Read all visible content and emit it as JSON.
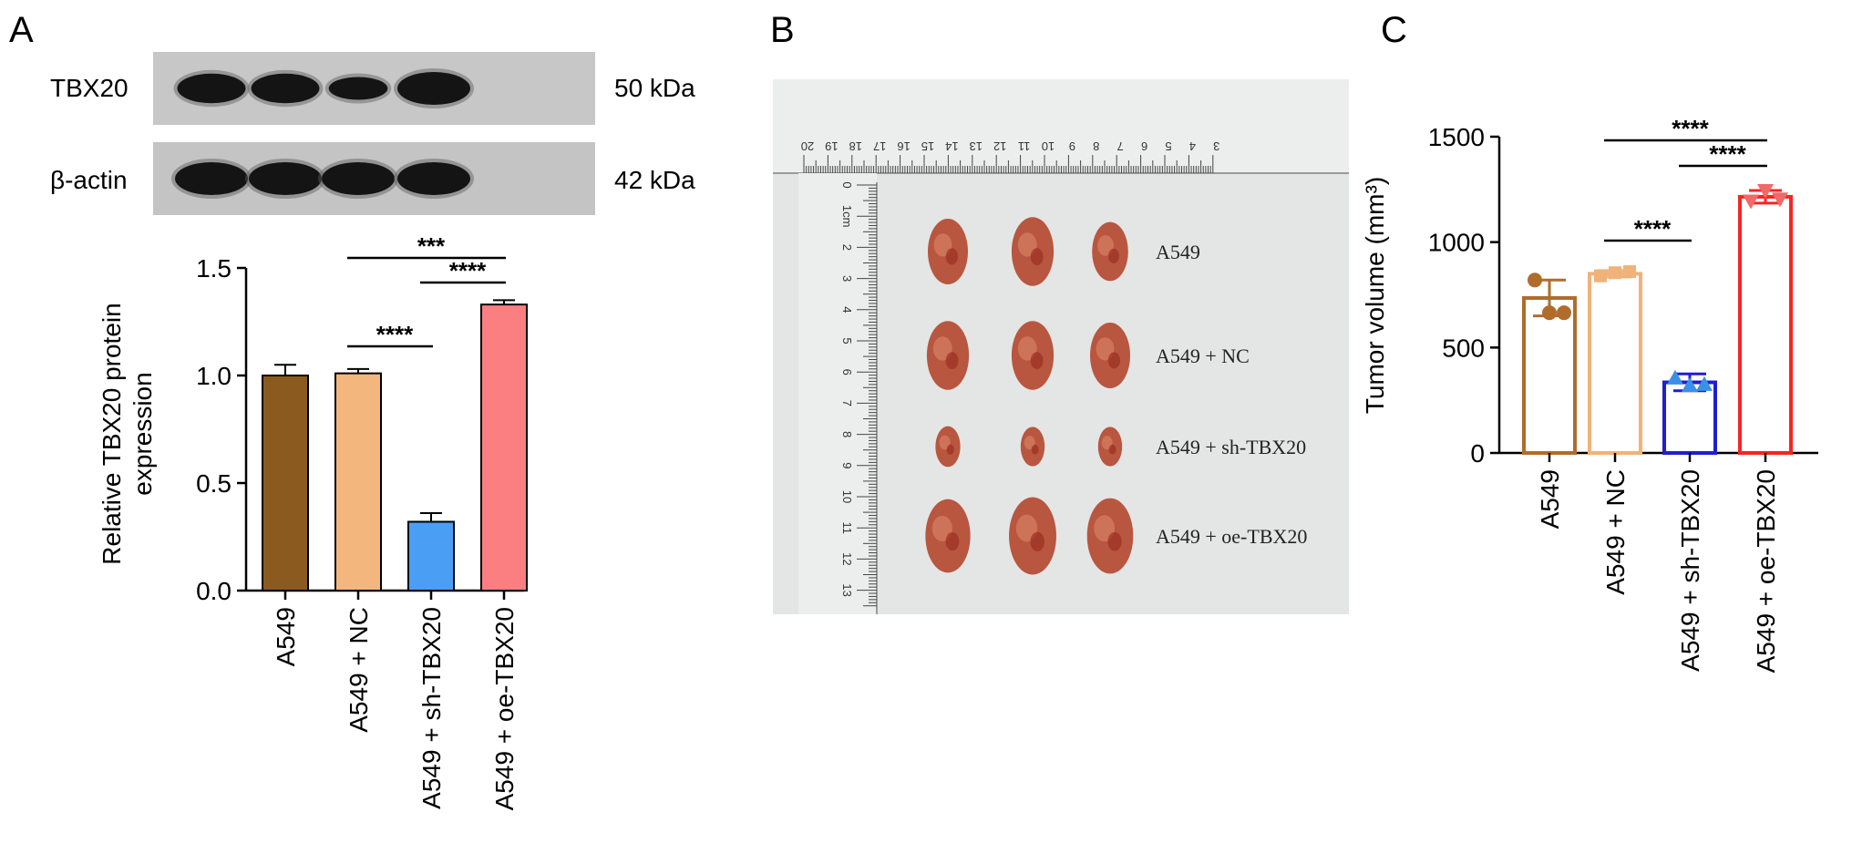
{
  "panels": {
    "a": {
      "letter": "A",
      "blot": {
        "rows": [
          {
            "protein": "TBX20",
            "mw": "50 kDa",
            "band_intensity": [
              0.82,
              0.82,
              0.45,
              1.0
            ]
          },
          {
            "protein": "β-actin",
            "mw": "42 kDa",
            "band_intensity": [
              1.0,
              1.0,
              1.0,
              1.0
            ]
          }
        ]
      }
    },
    "b": {
      "letter": "B",
      "photo": {
        "background": "#e4e6e5",
        "ruler_color": "#eceeed",
        "tumor_color": "#b9563f",
        "top_ruler_numbers": [
          "20",
          "19",
          "18",
          "17",
          "16",
          "15",
          "14",
          "13",
          "12",
          "11",
          "10",
          "9",
          "8",
          "7",
          "6",
          "5",
          "4",
          "3"
        ],
        "left_ruler_numbers": [
          "0",
          "1cm",
          "2",
          "3",
          "4",
          "5",
          "6",
          "7",
          "8",
          "9",
          "10",
          "11",
          "12",
          "13"
        ],
        "groups": [
          {
            "label": "A549",
            "tumor_sizes": [
              1.0,
              1.05,
              0.9
            ]
          },
          {
            "label": "A549 + NC",
            "tumor_sizes": [
              1.05,
              1.05,
              1.0
            ]
          },
          {
            "label": "A549 + sh-TBX20",
            "tumor_sizes": [
              0.62,
              0.6,
              0.6
            ]
          },
          {
            "label": "A549 + oe-TBX20",
            "tumor_sizes": [
              1.12,
              1.18,
              1.15
            ]
          }
        ]
      }
    },
    "c": {
      "letter": "C"
    }
  },
  "chart_data": [
    {
      "type": "bar",
      "panel": "A",
      "categories": [
        "A549",
        "A549 + NC",
        "A549 + sh-TBX20",
        "A549 + oe-TBX20"
      ],
      "values": [
        1.0,
        1.01,
        0.32,
        1.33
      ],
      "errors": [
        0.05,
        0.02,
        0.04,
        0.02
      ],
      "colors": [
        "#8b5a1f",
        "#f3b67c",
        "#4a9ff5",
        "#fb7f80"
      ],
      "ylabel": [
        "Relative TBX20 protein",
        "expression"
      ],
      "yticks": [
        "0.0",
        "0.5",
        "1.0",
        "1.5"
      ],
      "ylim": [
        0,
        1.5
      ],
      "significance": [
        {
          "from": 1,
          "to": 3,
          "label": "***"
        },
        {
          "from": 2,
          "to": 3,
          "label": "****"
        },
        {
          "from": 1,
          "to": 2,
          "label": "****"
        }
      ]
    },
    {
      "type": "bar",
      "panel": "C",
      "categories": [
        "A549",
        "A549 + NC",
        "A549 + sh-TBX20",
        "A549 + oe-TBX20"
      ],
      "values": [
        735,
        850,
        335,
        1215
      ],
      "errors": [
        85,
        15,
        40,
        30
      ],
      "points": [
        [
          820,
          665,
          665
        ],
        [
          840,
          855,
          860
        ],
        [
          355,
          320,
          325
        ],
        [
          1195,
          1245,
          1205
        ]
      ],
      "point_shapes": [
        "circle",
        "square",
        "triangle",
        "triangle-down"
      ],
      "colors": [
        "#b06c2b",
        "#f1b27a",
        "#1f1fcf",
        "#f52525"
      ],
      "ylabel": "Tumor volume (mm³)",
      "yticks": [
        "0",
        "500",
        "1000",
        "1500"
      ],
      "ylim": [
        0,
        1500
      ],
      "significance": [
        {
          "from": 1,
          "to": 3,
          "label": "****"
        },
        {
          "from": 2,
          "to": 3,
          "label": "****"
        },
        {
          "from": 1,
          "to": 2,
          "label": "****"
        }
      ]
    }
  ]
}
